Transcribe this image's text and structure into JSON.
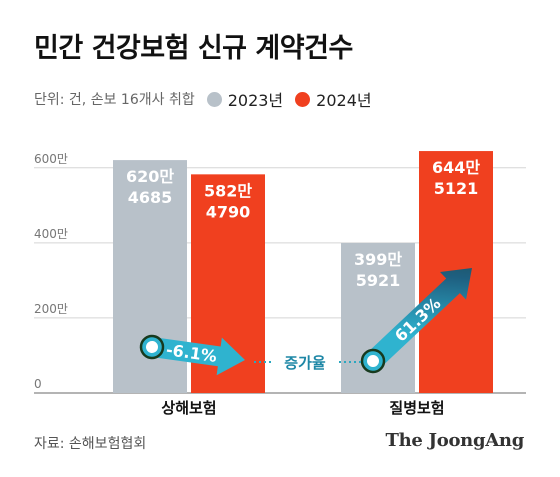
{
  "title": "민간 건강보험 신규 계약건수",
  "subtitle": "단위: 건, 손보 16개사 취합",
  "source": "자료: 손해보험협회",
  "brand": "The JoongAng",
  "colors": {
    "y2023": "#b8c1c9",
    "y2024": "#f0401f",
    "arrow_head": "#173a1e",
    "arrow_body": "#1e5f80",
    "arrow_tail": "#2fb3cf",
    "dotted": "#2aa7c0"
  },
  "chart_data": {
    "type": "bar",
    "categories": [
      "상해보험",
      "질병보험"
    ],
    "series": [
      {
        "name": "2023년",
        "values": [
          6204685,
          3995921
        ],
        "labels": [
          [
            "620만",
            "4685"
          ],
          [
            "399만",
            "5921"
          ]
        ]
      },
      {
        "name": "2024년",
        "values": [
          5824790,
          6445121
        ],
        "labels": [
          [
            "582만",
            "4790"
          ],
          [
            "644만",
            "5121"
          ]
        ]
      }
    ],
    "yticks": [
      {
        "value": 0,
        "label": "0"
      },
      {
        "value": 2000000,
        "label": "200만"
      },
      {
        "value": 4000000,
        "label": "400만"
      },
      {
        "value": 6000000,
        "label": "600만"
      }
    ],
    "ylim": [
      0,
      6500000
    ],
    "annotations": {
      "growth_rates": [
        "-6.1%",
        "61.3%"
      ],
      "middle_label": "증가율"
    }
  }
}
